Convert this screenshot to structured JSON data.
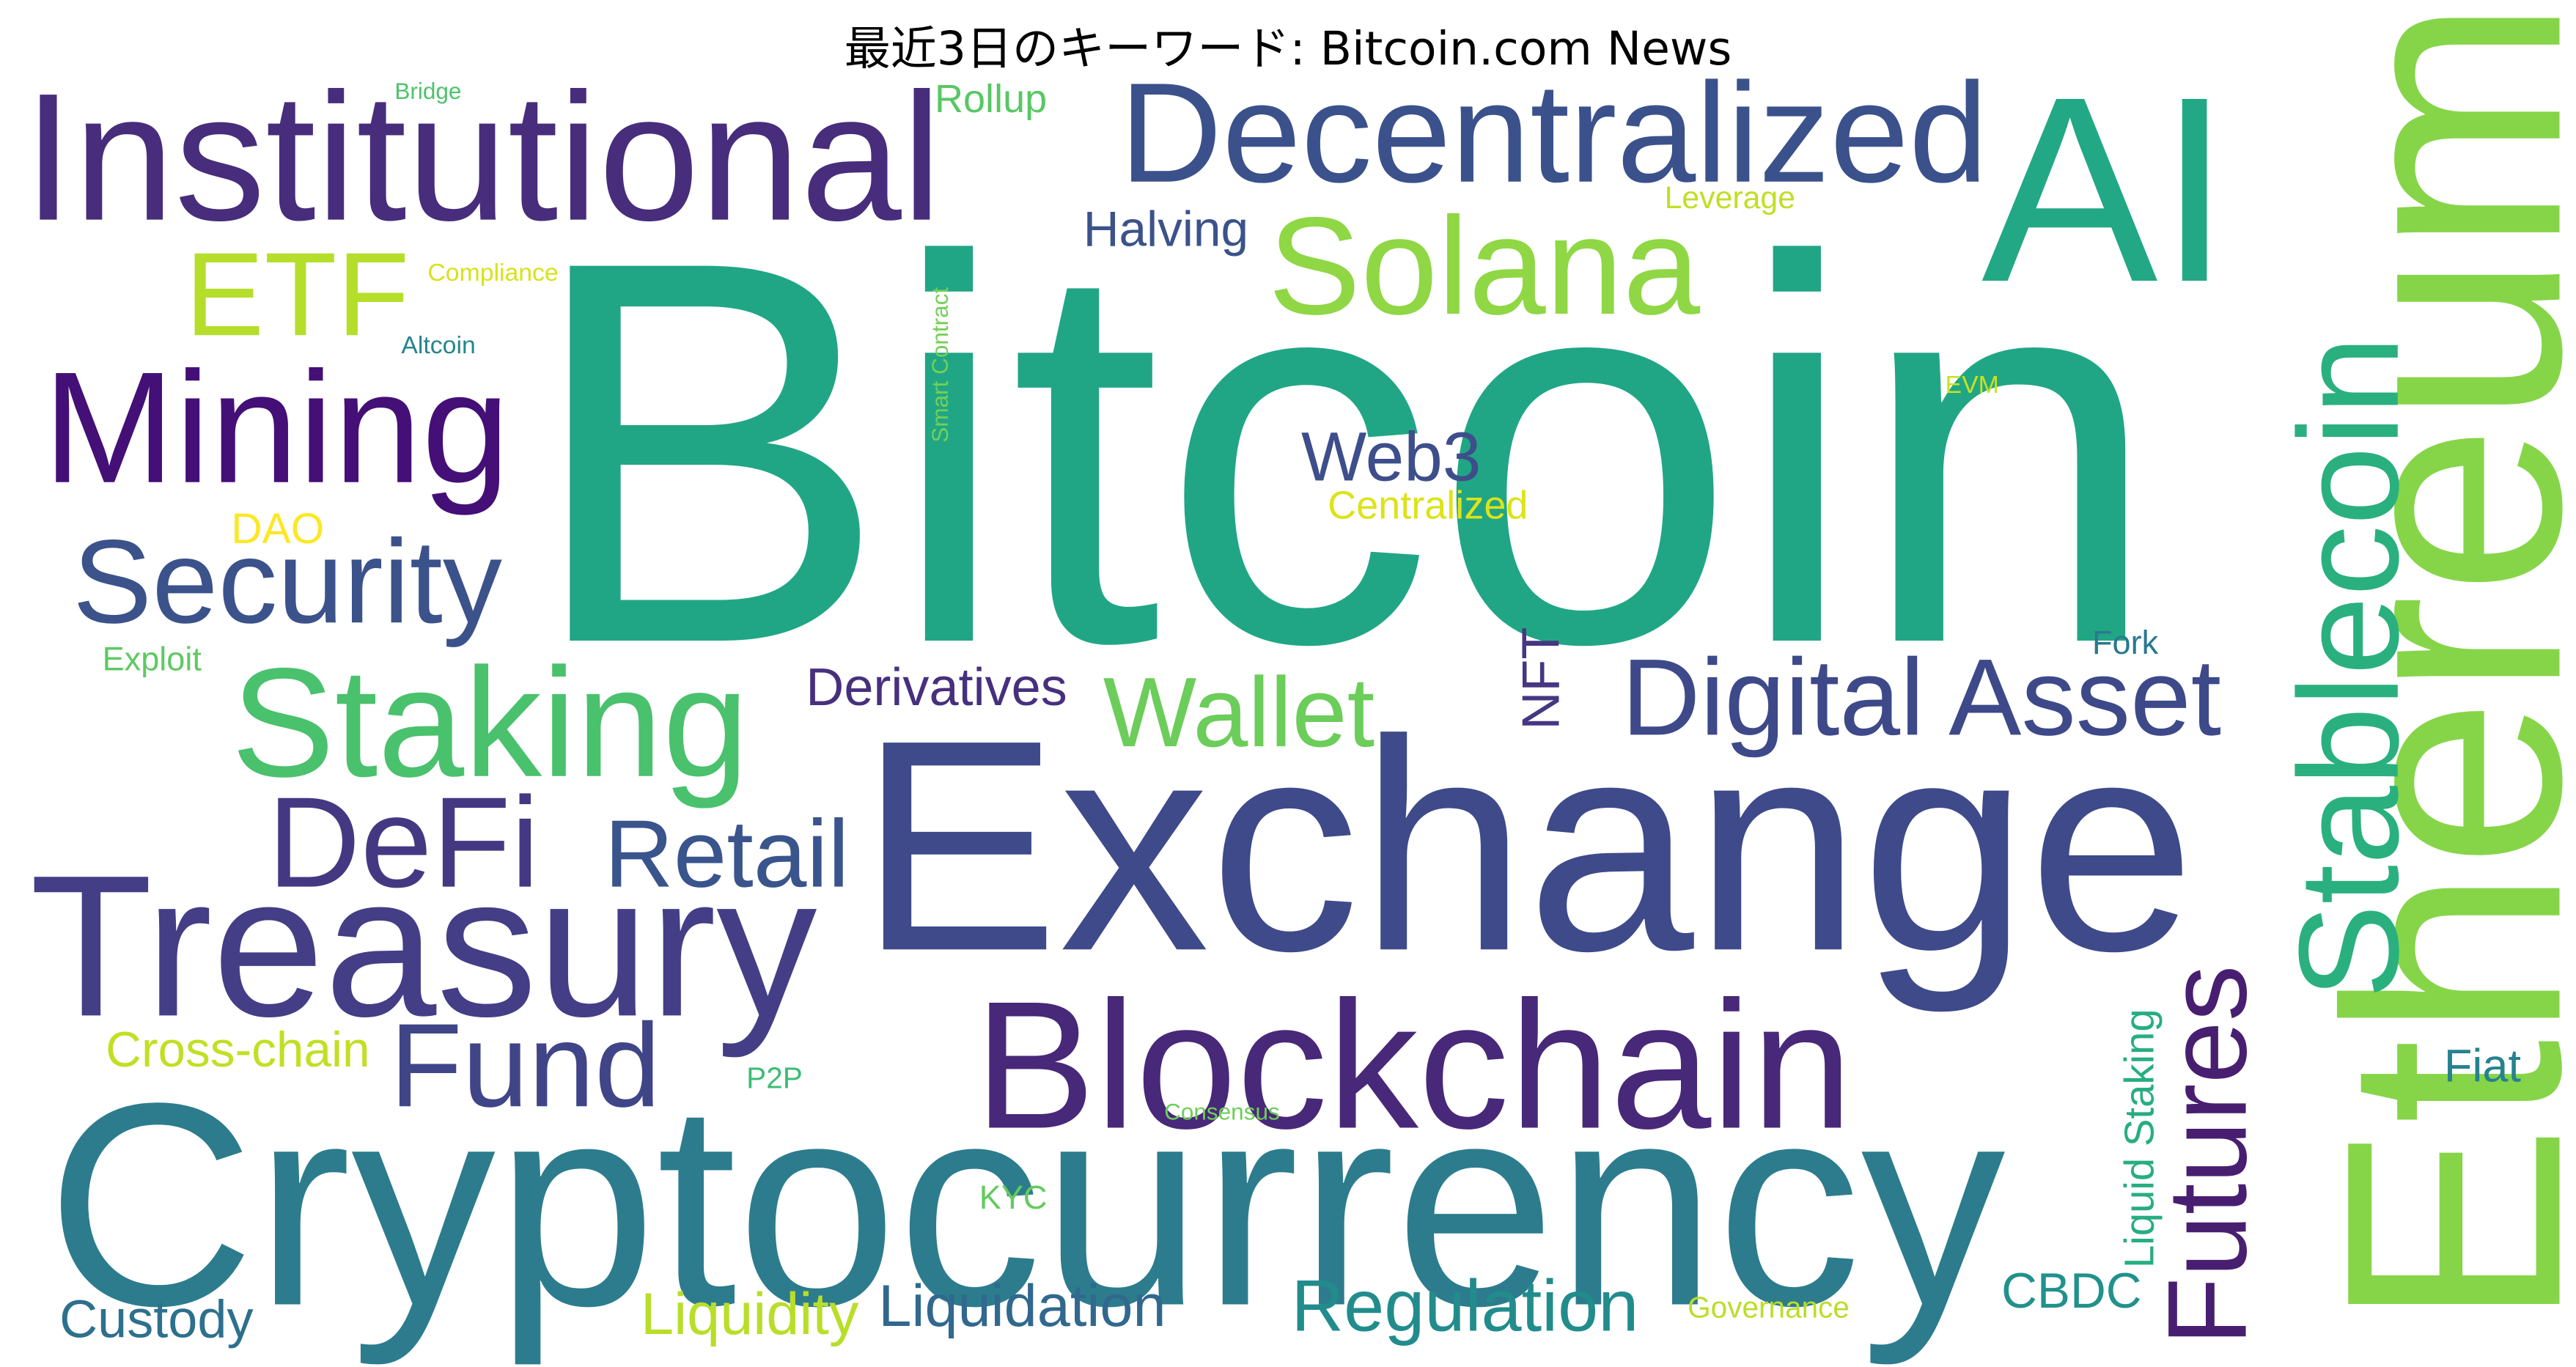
{
  "title": "最近3日のキーワード: Bitcoin.com News",
  "colors": {
    "background": "#ffffff",
    "title": "#000000"
  },
  "words": [
    {
      "text": "Bitcoin",
      "color": "#21a685"
    },
    {
      "text": "Exchange",
      "color": "#3e4a89"
    },
    {
      "text": "Cryptocurrency",
      "color": "#2c7c8e"
    },
    {
      "text": "Ethereum",
      "color": "#86d549"
    },
    {
      "text": "AI",
      "color": "#22a884"
    },
    {
      "text": "Institutional",
      "color": "#472d7b"
    },
    {
      "text": "Decentralized",
      "color": "#3b518b"
    },
    {
      "text": "Blockchain",
      "color": "#482878"
    },
    {
      "text": "Treasury",
      "color": "#433e85"
    },
    {
      "text": "Solana",
      "color": "#8fd744"
    },
    {
      "text": "Stablecoin",
      "color": "#2ab07f"
    },
    {
      "text": "Mining",
      "color": "#440f76"
    },
    {
      "text": "Staking",
      "color": "#4ac16d"
    },
    {
      "text": "Security",
      "color": "#3b528b"
    },
    {
      "text": "Digital Asset",
      "color": "#3e4989"
    },
    {
      "text": "DeFi",
      "color": "#453882"
    },
    {
      "text": "Fund",
      "color": "#404588"
    },
    {
      "text": "ETF",
      "color": "#b5de2b"
    },
    {
      "text": "Wallet",
      "color": "#6ccd5a"
    },
    {
      "text": "Futures",
      "color": "#481f70"
    },
    {
      "text": "Retail",
      "color": "#3a548c"
    },
    {
      "text": "Regulation",
      "color": "#228c8d"
    },
    {
      "text": "Web3",
      "color": "#3d4e8a"
    },
    {
      "text": "Liquidation",
      "color": "#31688e"
    },
    {
      "text": "Derivatives",
      "color": "#46307e"
    },
    {
      "text": "Liquidity",
      "color": "#b8de29"
    },
    {
      "text": "Custody",
      "color": "#2d708e"
    },
    {
      "text": "Cross-chain",
      "color": "#c2df23"
    },
    {
      "text": "Halving",
      "color": "#3b528b"
    },
    {
      "text": "NFT",
      "color": "#453781"
    },
    {
      "text": "CBDC",
      "color": "#21918c"
    },
    {
      "text": "Liquid Staking",
      "color": "#27ad81"
    },
    {
      "text": "Centralized",
      "color": "#dde318"
    },
    {
      "text": "DAO",
      "color": "#fde725"
    },
    {
      "text": "Fiat",
      "color": "#26828e"
    },
    {
      "text": "Rollup",
      "color": "#58c765"
    },
    {
      "text": "Exploit",
      "color": "#5ec962"
    },
    {
      "text": "Fork",
      "color": "#2a788e"
    },
    {
      "text": "KYC",
      "color": "#63cb5f"
    },
    {
      "text": "P2P",
      "color": "#3dbc74"
    },
    {
      "text": "Leverage",
      "color": "#c0df25"
    },
    {
      "text": "Governance",
      "color": "#bade28"
    },
    {
      "text": "Compliance",
      "color": "#d8e219"
    },
    {
      "text": "Altcoin",
      "color": "#25858e"
    },
    {
      "text": "EVM",
      "color": "#cae11f"
    },
    {
      "text": "Consensus",
      "color": "#6ece58"
    },
    {
      "text": "Smart Contract",
      "color": "#73d056"
    },
    {
      "text": "Bridge",
      "color": "#4ec36b"
    }
  ]
}
